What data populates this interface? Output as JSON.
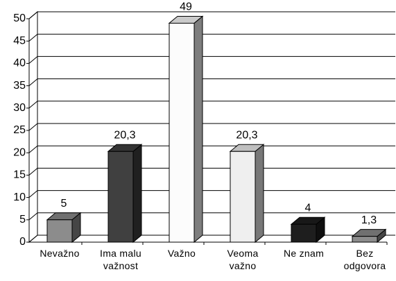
{
  "chart_data": {
    "type": "bar3d",
    "categories": [
      "Nevažno",
      "Ima malu važnost",
      "Važno",
      "Veoma važno",
      "Ne znam",
      "Bez odgovora"
    ],
    "values": [
      5,
      20.3,
      49,
      20.3,
      4,
      1.3
    ],
    "value_labels": [
      "5",
      "20,3",
      "49",
      "20,3",
      "4",
      "1,3"
    ],
    "colors": [
      "#8c8c8c",
      "#404040",
      "#fcfcfc",
      "#efefef",
      "#1e1e1e",
      "#8c8c8c"
    ],
    "ylim": [
      0,
      50
    ],
    "yticks": [
      0,
      5,
      10,
      15,
      20,
      25,
      30,
      35,
      40,
      45,
      50
    ],
    "grid": true
  }
}
